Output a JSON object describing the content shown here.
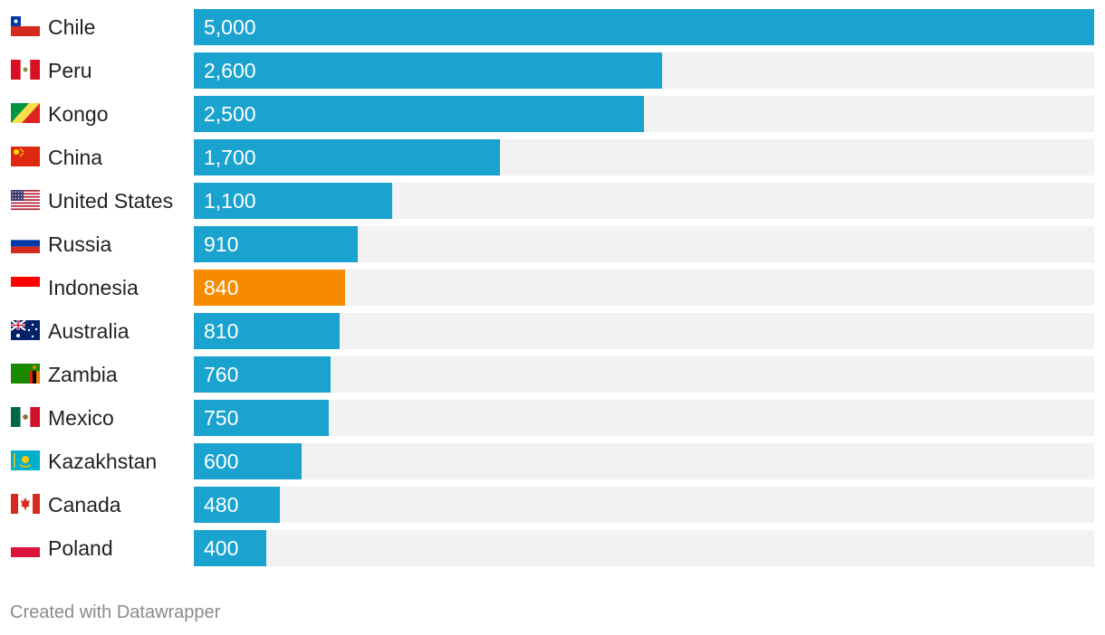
{
  "chart_data": {
    "type": "bar",
    "orientation": "horizontal",
    "categories": [
      "Chile",
      "Peru",
      "Kongo",
      "China",
      "United States",
      "Russia",
      "Indonesia",
      "Australia",
      "Zambia",
      "Mexico",
      "Kazakhstan",
      "Canada",
      "Poland"
    ],
    "values": [
      5000,
      2600,
      2500,
      1700,
      1100,
      910,
      840,
      810,
      760,
      750,
      600,
      480,
      400
    ],
    "value_labels": [
      "5,000",
      "2,600",
      "2,500",
      "1,700",
      "1,100",
      "910",
      "840",
      "810",
      "760",
      "750",
      "600",
      "480",
      "400"
    ],
    "flag_icons": [
      "chile-flag-icon",
      "peru-flag-icon",
      "congo-flag-icon",
      "china-flag-icon",
      "usa-flag-icon",
      "russia-flag-icon",
      "indonesia-flag-icon",
      "australia-flag-icon",
      "zambia-flag-icon",
      "mexico-flag-icon",
      "kazakhstan-flag-icon",
      "canada-flag-icon",
      "poland-flag-icon"
    ],
    "xlim": [
      0,
      5000
    ],
    "highlight": "Indonesia",
    "colors": {
      "bar": "#1ba3cf",
      "highlight": "#f68b00",
      "track": "#f2f2f2",
      "label": "#222222",
      "value": "#ffffff"
    },
    "grid": false,
    "legend": "none"
  },
  "footer": {
    "credit": "Created with Datawrapper"
  }
}
